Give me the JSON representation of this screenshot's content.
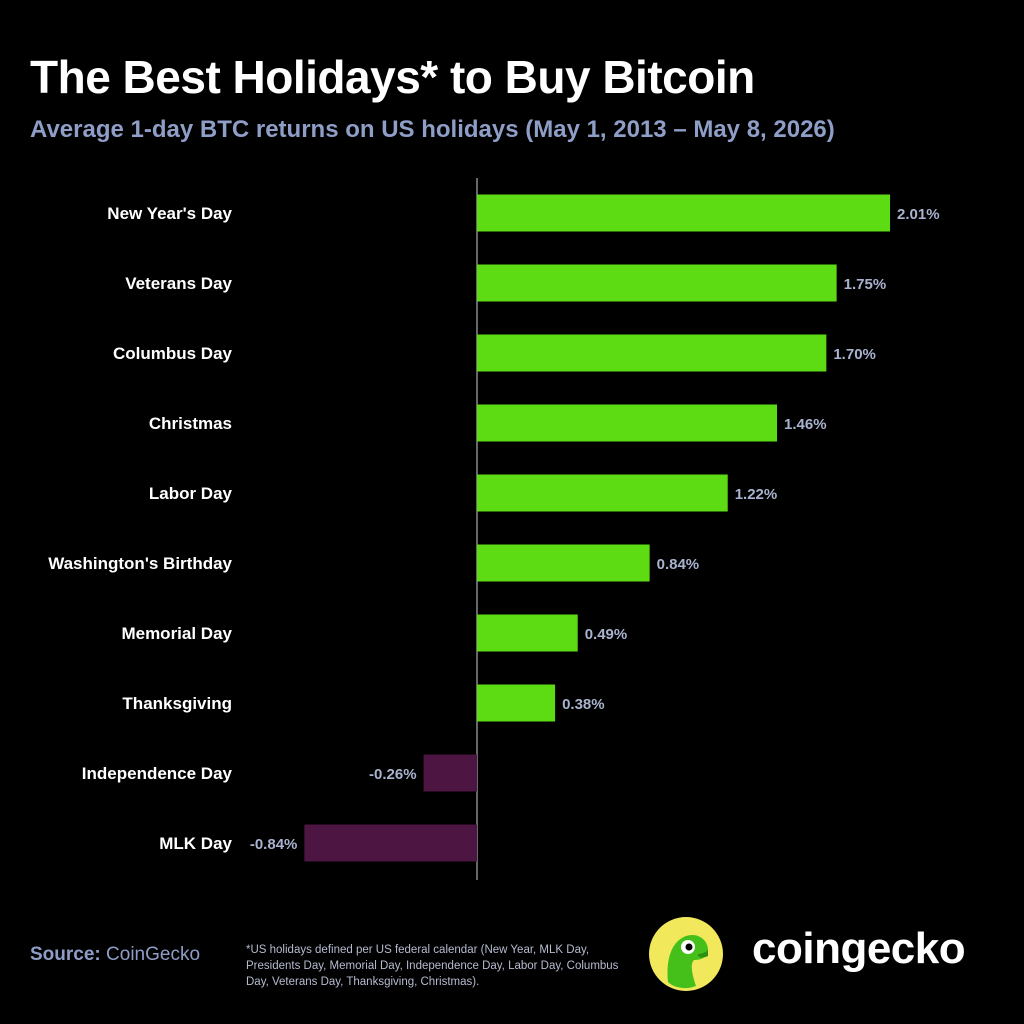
{
  "header": {
    "title": "The Best Holidays* to Buy Bitcoin",
    "subtitle": "Average 1-day BTC returns on US holidays (May 1, 2013 – May 8, 2026)"
  },
  "chart_data": {
    "type": "bar",
    "orientation": "horizontal",
    "categories": [
      "New Year's Day",
      "Veterans Day",
      "Columbus Day",
      "Christmas",
      "Labor Day",
      "Washington's Birthday",
      "Memorial Day",
      "Thanksgiving",
      "Independence Day",
      "MLK Day"
    ],
    "values": [
      2.01,
      1.75,
      1.7,
      1.46,
      1.22,
      0.84,
      0.49,
      0.38,
      -0.26,
      -0.84
    ],
    "value_labels": [
      "2.01%",
      "1.75%",
      "1.70%",
      "1.46%",
      "1.22%",
      "0.84%",
      "0.49%",
      "0.38%",
      "-0.26%",
      "-0.84%"
    ],
    "unit": "%",
    "grid": false,
    "legend": "none",
    "colors": {
      "positive": "#5ddc14",
      "negative": "#4d1542",
      "axis": "#8a8a8a"
    }
  },
  "footer": {
    "source_label": "Source:",
    "source_value": "CoinGecko",
    "footnote": "*US holidays defined per US federal calendar (New Year, MLK Day, Presidents Day, Memorial Day, Independence Day, Labor Day, Columbus Day, Veterans Day, Thanksgiving, Christmas).",
    "brand": "coingecko",
    "logo_icon": "coingecko-gecko-logo-icon"
  }
}
